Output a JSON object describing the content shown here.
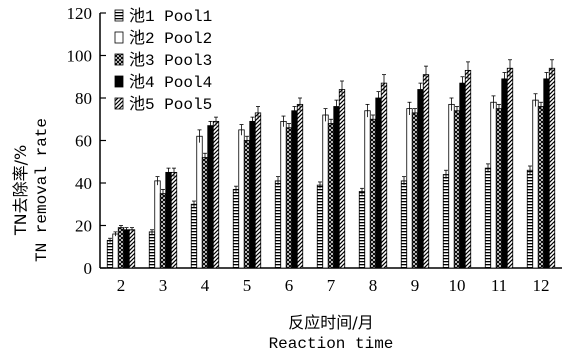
{
  "chart_data": {
    "type": "bar",
    "categories": [
      "2",
      "3",
      "4",
      "5",
      "6",
      "7",
      "8",
      "9",
      "10",
      "11",
      "12"
    ],
    "ylim": [
      0,
      120
    ],
    "yticks": [
      "0",
      "20",
      "40",
      "60",
      "80",
      "100",
      "120"
    ],
    "ylabel_line1": "TN去除率/%",
    "ylabel_line2": "TN removal rate",
    "xlabel_line1": "反应时间/月",
    "xlabel_line2": "Reaction time",
    "series": [
      {
        "name": "池1 Pool1",
        "pattern": "hstripe",
        "values": [
          13,
          17,
          30,
          37,
          41,
          39,
          36,
          41,
          44,
          47,
          46
        ],
        "errors": [
          1,
          1,
          1.5,
          1.5,
          2,
          1.5,
          1.5,
          2,
          2,
          2,
          2
        ]
      },
      {
        "name": "池2 Pool2",
        "pattern": "white",
        "values": [
          16,
          41,
          62,
          65,
          69,
          72,
          74,
          75,
          77,
          78,
          79
        ],
        "errors": [
          1,
          2,
          3,
          2.5,
          2.5,
          3,
          3,
          3,
          3,
          3,
          3
        ]
      },
      {
        "name": "池3 Pool3",
        "pattern": "crosshatch",
        "values": [
          19,
          35,
          52,
          60,
          66,
          68,
          70,
          73,
          74,
          75,
          76
        ],
        "errors": [
          1,
          2,
          2,
          2,
          2,
          2,
          2,
          2,
          2,
          2,
          2
        ]
      },
      {
        "name": "池4 Pool4",
        "pattern": "black",
        "values": [
          18,
          45,
          67,
          69,
          74,
          76,
          80,
          84,
          87,
          89,
          89
        ],
        "errors": [
          1,
          2,
          2,
          2,
          2,
          3,
          3,
          3,
          3,
          3,
          3
        ]
      },
      {
        "name": "池5 Pool5",
        "pattern": "diagonal",
        "values": [
          18,
          45,
          69,
          73,
          77,
          84,
          87,
          91,
          93,
          94,
          94
        ],
        "errors": [
          1,
          2,
          2,
          3,
          3,
          4,
          4,
          4,
          4,
          4,
          4
        ]
      }
    ]
  }
}
